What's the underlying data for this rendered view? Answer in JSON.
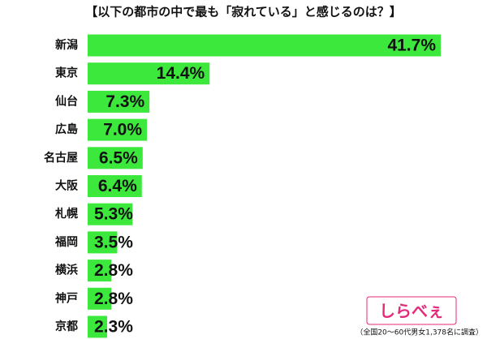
{
  "chart_data": {
    "type": "bar",
    "orientation": "horizontal",
    "title": "【以下の都市の中で最も「寂れている」と感じるのは？】",
    "categories": [
      "新潟",
      "東京",
      "仙台",
      "広島",
      "名古屋",
      "大阪",
      "札幌",
      "福岡",
      "横浜",
      "神戸",
      "京都"
    ],
    "values": [
      41.7,
      14.4,
      7.3,
      7.0,
      6.5,
      6.4,
      5.3,
      3.5,
      2.8,
      2.8,
      2.3
    ],
    "value_labels": [
      "41.7%",
      "14.4%",
      "7.3%",
      "7.0%",
      "6.5%",
      "6.4%",
      "5.3%",
      "3.5%",
      "2.8%",
      "2.8%",
      "2.3%"
    ],
    "color": "#3de83d",
    "logo": "しらべぇ",
    "note": "（全国20～60代男女1,378名に調査）"
  }
}
